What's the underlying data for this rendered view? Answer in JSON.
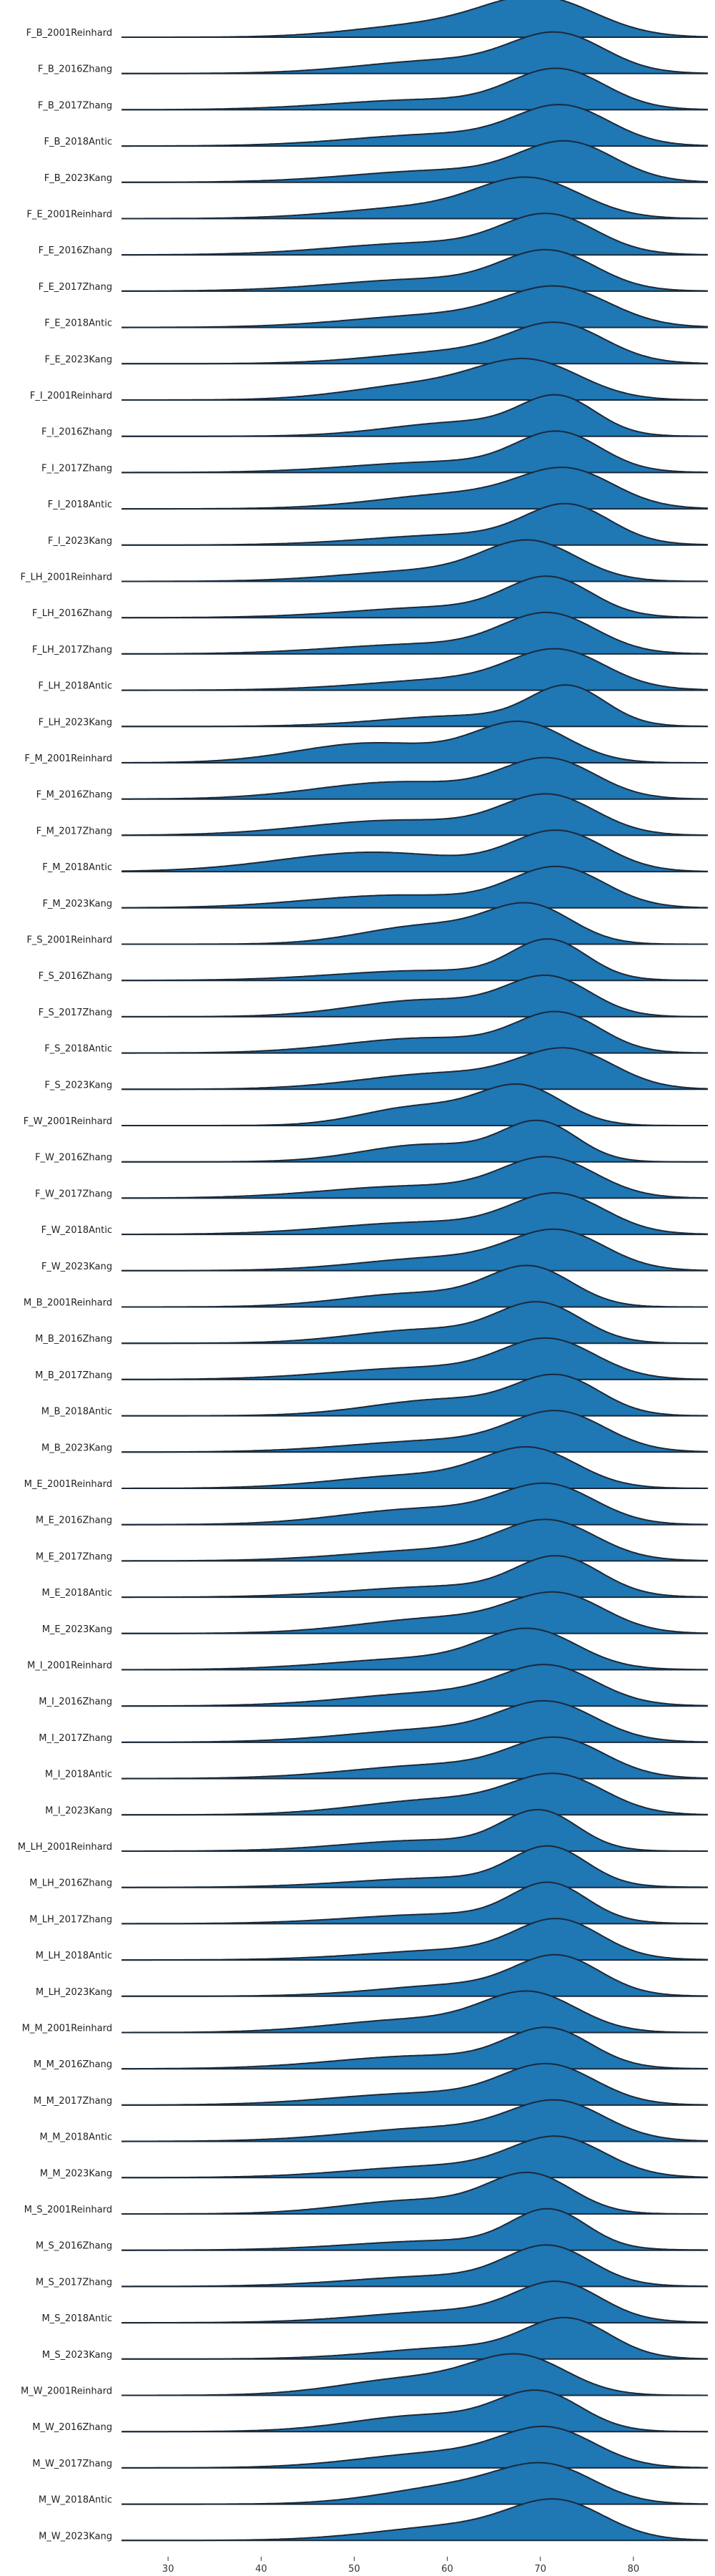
{
  "chart_data": {
    "type": "area",
    "subtype": "ridgeline",
    "title": "",
    "xlabel": "",
    "ylabel": "",
    "xlim": [
      25,
      88
    ],
    "xticks": [
      30,
      40,
      50,
      60,
      70,
      80
    ],
    "grid": false,
    "legend": "none",
    "fill_color": "#1f77b4",
    "line_color": "#1a2a3a",
    "series": [
      {
        "name": "F_B_2001Reinhard",
        "components": [
          [
            70,
            6,
            0.7
          ],
          [
            58,
            8,
            0.3
          ]
        ]
      },
      {
        "name": "F_B_2016Zhang",
        "components": [
          [
            72,
            5,
            0.6
          ],
          [
            60,
            9,
            0.4
          ]
        ]
      },
      {
        "name": "F_B_2017Zhang",
        "components": [
          [
            72,
            5,
            0.65
          ],
          [
            58,
            10,
            0.35
          ]
        ]
      },
      {
        "name": "F_B_2018Antic",
        "components": [
          [
            72.5,
            5,
            0.6
          ],
          [
            60,
            10,
            0.4
          ]
        ]
      },
      {
        "name": "F_B_2023Kang",
        "components": [
          [
            73,
            5,
            0.6
          ],
          [
            60,
            10,
            0.4
          ]
        ]
      },
      {
        "name": "F_E_2001Reinhard",
        "components": [
          [
            69,
            5.5,
            0.65
          ],
          [
            58,
            9,
            0.35
          ]
        ]
      },
      {
        "name": "F_E_2016Zhang",
        "components": [
          [
            71,
            5,
            0.6
          ],
          [
            58,
            10,
            0.4
          ]
        ]
      },
      {
        "name": "F_E_2017Zhang",
        "components": [
          [
            71,
            5,
            0.6
          ],
          [
            58,
            10,
            0.4
          ]
        ]
      },
      {
        "name": "F_E_2018Antic",
        "components": [
          [
            72,
            5.5,
            0.6
          ],
          [
            60,
            10,
            0.4
          ]
        ]
      },
      {
        "name": "F_E_2023Kang",
        "components": [
          [
            72,
            5,
            0.6
          ],
          [
            62,
            9,
            0.4
          ]
        ]
      },
      {
        "name": "F_I_2001Reinhard",
        "components": [
          [
            69,
            5.5,
            0.6
          ],
          [
            58,
            8,
            0.4
          ]
        ]
      },
      {
        "name": "F_I_2016Zhang",
        "components": [
          [
            72,
            4,
            0.55
          ],
          [
            62,
            8,
            0.45
          ]
        ]
      },
      {
        "name": "F_I_2017Zhang",
        "components": [
          [
            72,
            4.5,
            0.6
          ],
          [
            60,
            10,
            0.4
          ]
        ]
      },
      {
        "name": "F_I_2018Antic",
        "components": [
          [
            73,
            5,
            0.55
          ],
          [
            62,
            9,
            0.45
          ]
        ]
      },
      {
        "name": "F_I_2023Kang",
        "components": [
          [
            73,
            4.5,
            0.6
          ],
          [
            62,
            10,
            0.4
          ]
        ]
      },
      {
        "name": "F_LH_2001Reinhard",
        "components": [
          [
            69,
            5,
            0.65
          ],
          [
            58,
            9,
            0.35
          ]
        ]
      },
      {
        "name": "F_LH_2016Zhang",
        "components": [
          [
            71,
            4.5,
            0.6
          ],
          [
            60,
            10,
            0.4
          ]
        ]
      },
      {
        "name": "F_LH_2017Zhang",
        "components": [
          [
            71,
            5,
            0.65
          ],
          [
            58,
            10,
            0.35
          ]
        ]
      },
      {
        "name": "F_LH_2018Antic",
        "components": [
          [
            72,
            5,
            0.6
          ],
          [
            62,
            10,
            0.4
          ]
        ]
      },
      {
        "name": "F_LH_2023Kang",
        "components": [
          [
            73,
            4,
            0.6
          ],
          [
            62,
            9,
            0.4
          ]
        ]
      },
      {
        "name": "F_M_2001Reinhard",
        "components": [
          [
            68,
            5,
            0.55
          ],
          [
            52,
            8,
            0.45
          ]
        ]
      },
      {
        "name": "F_M_2016Zhang",
        "components": [
          [
            71,
            5,
            0.55
          ],
          [
            55,
            9,
            0.45
          ]
        ]
      },
      {
        "name": "F_M_2017Zhang",
        "components": [
          [
            71,
            5,
            0.55
          ],
          [
            55,
            10,
            0.45
          ]
        ]
      },
      {
        "name": "F_M_2018Antic",
        "components": [
          [
            72,
            5,
            0.5
          ],
          [
            52,
            10,
            0.5
          ]
        ]
      },
      {
        "name": "F_M_2023Kang",
        "components": [
          [
            72,
            5,
            0.6
          ],
          [
            55,
            10,
            0.4
          ]
        ]
      },
      {
        "name": "F_S_2001Reinhard",
        "components": [
          [
            69,
            4.5,
            0.55
          ],
          [
            58,
            7,
            0.45
          ]
        ]
      },
      {
        "name": "F_S_2016Zhang",
        "components": [
          [
            71,
            4,
            0.6
          ],
          [
            58,
            10,
            0.4
          ]
        ]
      },
      {
        "name": "F_S_2017Zhang",
        "components": [
          [
            71,
            4.5,
            0.55
          ],
          [
            58,
            8,
            0.45
          ]
        ]
      },
      {
        "name": "F_S_2018Antic",
        "components": [
          [
            72,
            4.5,
            0.55
          ],
          [
            58,
            9,
            0.45
          ]
        ]
      },
      {
        "name": "F_S_2023Kang",
        "components": [
          [
            73,
            5,
            0.55
          ],
          [
            60,
            9,
            0.45
          ]
        ]
      },
      {
        "name": "F_W_2001Reinhard",
        "components": [
          [
            68,
            4.5,
            0.6
          ],
          [
            57,
            6,
            0.4
          ]
        ]
      },
      {
        "name": "F_W_2016Zhang",
        "components": [
          [
            70,
            4,
            0.55
          ],
          [
            58,
            7,
            0.45
          ]
        ]
      },
      {
        "name": "F_W_2017Zhang",
        "components": [
          [
            71,
            5,
            0.6
          ],
          [
            57,
            10,
            0.4
          ]
        ]
      },
      {
        "name": "F_W_2018Antic",
        "components": [
          [
            72,
            5,
            0.6
          ],
          [
            58,
            10,
            0.4
          ]
        ]
      },
      {
        "name": "F_W_2023Kang",
        "components": [
          [
            72,
            5,
            0.6
          ],
          [
            60,
            9,
            0.4
          ]
        ]
      },
      {
        "name": "M_B_2001Reinhard",
        "components": [
          [
            69,
            4.5,
            0.6
          ],
          [
            57,
            8,
            0.4
          ]
        ]
      },
      {
        "name": "M_B_2016Zhang",
        "components": [
          [
            70,
            4.5,
            0.6
          ],
          [
            58,
            8,
            0.4
          ]
        ]
      },
      {
        "name": "M_B_2017Zhang",
        "components": [
          [
            71,
            5,
            0.6
          ],
          [
            58,
            10,
            0.4
          ]
        ]
      },
      {
        "name": "M_B_2018Antic",
        "components": [
          [
            72,
            4.5,
            0.55
          ],
          [
            60,
            8,
            0.45
          ]
        ]
      },
      {
        "name": "M_B_2023Kang",
        "components": [
          [
            72,
            5,
            0.6
          ],
          [
            60,
            10,
            0.4
          ]
        ]
      },
      {
        "name": "M_E_2001Reinhard",
        "components": [
          [
            69,
            5,
            0.6
          ],
          [
            57,
            9,
            0.4
          ]
        ]
      },
      {
        "name": "M_E_2016Zhang",
        "components": [
          [
            71,
            5,
            0.55
          ],
          [
            58,
            9,
            0.45
          ]
        ]
      },
      {
        "name": "M_E_2017Zhang",
        "components": [
          [
            71,
            5,
            0.6
          ],
          [
            60,
            10,
            0.4
          ]
        ]
      },
      {
        "name": "M_E_2018Antic",
        "components": [
          [
            72,
            4.5,
            0.6
          ],
          [
            60,
            10,
            0.4
          ]
        ]
      },
      {
        "name": "M_E_2023Kang",
        "components": [
          [
            72,
            5,
            0.55
          ],
          [
            60,
            9,
            0.45
          ]
        ]
      },
      {
        "name": "M_I_2001Reinhard",
        "components": [
          [
            69,
            5,
            0.6
          ],
          [
            58,
            10,
            0.4
          ]
        ]
      },
      {
        "name": "M_I_2016Zhang",
        "components": [
          [
            71,
            5,
            0.55
          ],
          [
            60,
            10,
            0.45
          ]
        ]
      },
      {
        "name": "M_I_2017Zhang",
        "components": [
          [
            71,
            5,
            0.55
          ],
          [
            60,
            10,
            0.45
          ]
        ]
      },
      {
        "name": "M_I_2018Antic",
        "components": [
          [
            72,
            5,
            0.55
          ],
          [
            60,
            10,
            0.45
          ]
        ]
      },
      {
        "name": "M_I_2023Kang",
        "components": [
          [
            72,
            5,
            0.55
          ],
          [
            60,
            9,
            0.45
          ]
        ]
      },
      {
        "name": "M_LH_2001Reinhard",
        "components": [
          [
            70,
            4,
            0.6
          ],
          [
            58,
            9,
            0.4
          ]
        ]
      },
      {
        "name": "M_LH_2016Zhang",
        "components": [
          [
            71,
            4,
            0.6
          ],
          [
            60,
            10,
            0.4
          ]
        ]
      },
      {
        "name": "M_LH_2017Zhang",
        "components": [
          [
            71,
            4,
            0.6
          ],
          [
            60,
            10,
            0.4
          ]
        ]
      },
      {
        "name": "M_LH_2018Antic",
        "components": [
          [
            72,
            4.5,
            0.6
          ],
          [
            62,
            10,
            0.4
          ]
        ]
      },
      {
        "name": "M_LH_2023Kang",
        "components": [
          [
            72,
            4.5,
            0.6
          ],
          [
            62,
            9,
            0.4
          ]
        ]
      },
      {
        "name": "M_M_2001Reinhard",
        "components": [
          [
            69,
            5,
            0.6
          ],
          [
            57,
            9,
            0.4
          ]
        ]
      },
      {
        "name": "M_M_2016Zhang",
        "components": [
          [
            71,
            4.5,
            0.55
          ],
          [
            58,
            10,
            0.45
          ]
        ]
      },
      {
        "name": "M_M_2017Zhang",
        "components": [
          [
            71,
            5,
            0.6
          ],
          [
            58,
            10,
            0.4
          ]
        ]
      },
      {
        "name": "M_M_2018Antic",
        "components": [
          [
            72,
            5,
            0.55
          ],
          [
            60,
            10,
            0.45
          ]
        ]
      },
      {
        "name": "M_M_2023Kang",
        "components": [
          [
            72,
            5,
            0.6
          ],
          [
            60,
            10,
            0.4
          ]
        ]
      },
      {
        "name": "M_S_2001Reinhard",
        "components": [
          [
            69,
            4.5,
            0.6
          ],
          [
            57,
            8,
            0.4
          ]
        ]
      },
      {
        "name": "M_S_2016Zhang",
        "components": [
          [
            71,
            4,
            0.6
          ],
          [
            60,
            10,
            0.4
          ]
        ]
      },
      {
        "name": "M_S_2017Zhang",
        "components": [
          [
            71,
            4.5,
            0.6
          ],
          [
            60,
            10,
            0.4
          ]
        ]
      },
      {
        "name": "M_S_2018Antic",
        "components": [
          [
            72,
            4.5,
            0.55
          ],
          [
            62,
            10,
            0.45
          ]
        ]
      },
      {
        "name": "M_S_2023Kang",
        "components": [
          [
            73,
            4.5,
            0.6
          ],
          [
            62,
            9,
            0.4
          ]
        ]
      },
      {
        "name": "M_W_2001Reinhard",
        "components": [
          [
            68,
            5,
            0.55
          ],
          [
            57,
            8,
            0.45
          ]
        ]
      },
      {
        "name": "M_W_2016Zhang",
        "components": [
          [
            70,
            4.5,
            0.55
          ],
          [
            58,
            8,
            0.45
          ]
        ]
      },
      {
        "name": "M_W_2017Zhang",
        "components": [
          [
            71,
            5,
            0.55
          ],
          [
            60,
            9,
            0.45
          ]
        ]
      },
      {
        "name": "M_W_2018Antic",
        "components": [
          [
            71,
            5,
            0.5
          ],
          [
            62,
            8,
            0.5
          ]
        ]
      },
      {
        "name": "M_W_2023Kang",
        "components": [
          [
            72,
            5,
            0.55
          ],
          [
            62,
            9,
            0.45
          ]
        ]
      }
    ]
  }
}
